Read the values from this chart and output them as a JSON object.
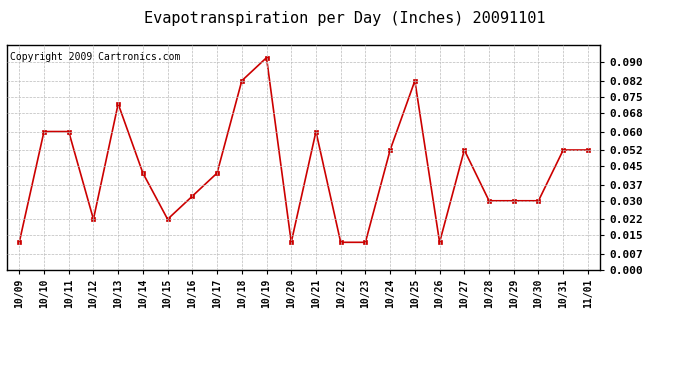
{
  "title": "Evapotranspiration per Day (Inches) 20091101",
  "copyright": "Copyright 2009 Cartronics.com",
  "x_labels": [
    "10/09",
    "10/10",
    "10/11",
    "10/12",
    "10/13",
    "10/14",
    "10/15",
    "10/16",
    "10/17",
    "10/18",
    "10/19",
    "10/20",
    "10/21",
    "10/22",
    "10/23",
    "10/24",
    "10/25",
    "10/26",
    "10/27",
    "10/28",
    "10/29",
    "10/30",
    "10/31",
    "11/01"
  ],
  "y_values": [
    0.012,
    0.06,
    0.06,
    0.022,
    0.072,
    0.042,
    0.022,
    0.032,
    0.042,
    0.082,
    0.092,
    0.012,
    0.06,
    0.012,
    0.012,
    0.052,
    0.082,
    0.012,
    0.052,
    0.03,
    0.03,
    0.03,
    0.052,
    0.052
  ],
  "line_color": "#cc0000",
  "marker": "s",
  "marker_size": 2.5,
  "line_width": 1.2,
  "ylim": [
    0.0,
    0.0975
  ],
  "yticks": [
    0.0,
    0.007,
    0.015,
    0.022,
    0.03,
    0.037,
    0.045,
    0.052,
    0.06,
    0.068,
    0.075,
    0.082,
    0.09
  ],
  "grid_color": "#bbbbbb",
  "grid_style": "--",
  "bg_color": "#ffffff",
  "plot_bg_color": "#ffffff",
  "title_fontsize": 11,
  "copyright_fontsize": 7,
  "tick_fontsize": 7,
  "ytick_fontsize": 8
}
